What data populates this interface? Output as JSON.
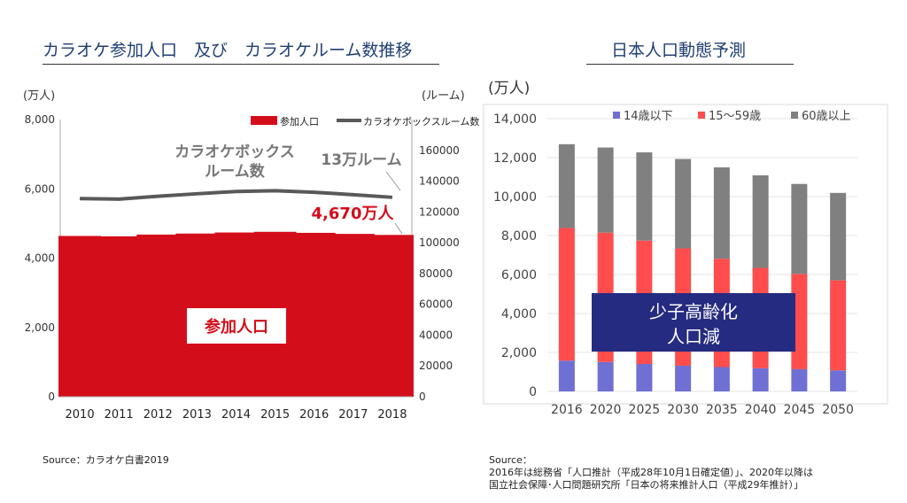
{
  "left_title": "カラオケ参加人口　及び　カラオケルーム数推移",
  "right_title": "日本人口動態予測",
  "left_source": "Source：カラオケ白書2019",
  "right_source": {
    "label": "Source：",
    "line1": "2016年は総務省「人口推計（平成28年10月1日確定値）」、2020年以降は",
    "line2": "国立社会保障･人口問題研究所「日本の将来推計人口（平成29年推計）」"
  },
  "chart_data": [
    {
      "type": "bar",
      "title": "カラオケ参加人口　及び　カラオケルーム数推移",
      "ylabel": "(万人)",
      "y2label": "(ルーム)",
      "categories": [
        "2010",
        "2011",
        "2012",
        "2013",
        "2014",
        "2015",
        "2016",
        "2017",
        "2018"
      ],
      "ylim": [
        0,
        8000
      ],
      "yticks": [
        "0",
        "2,000",
        "4,000",
        "6,000",
        "8,000"
      ],
      "y2lim": [
        0,
        180000
      ],
      "y2ticks": [
        "0",
        "20000",
        "40000",
        "60000",
        "80000",
        "100000",
        "120000",
        "140000",
        "160000"
      ],
      "series": [
        {
          "name": "参加人口",
          "type": "bar",
          "axis": "left",
          "color": "#d40d1a",
          "values": [
            4640,
            4630,
            4680,
            4710,
            4740,
            4760,
            4730,
            4700,
            4670
          ]
        },
        {
          "name": "カラオケボックスルーム数",
          "type": "line",
          "axis": "right",
          "color": "#595959",
          "values": [
            128700,
            128300,
            130200,
            131800,
            133300,
            133800,
            132800,
            131200,
            129500
          ]
        }
      ],
      "annotations": {
        "line_label": [
          "カラオケボックス",
          "ルーム数"
        ],
        "line_value": "13万ルーム",
        "bar_value": "4,670万人",
        "bar_center": "参加人口"
      }
    },
    {
      "type": "bar",
      "stacked": true,
      "title": "日本人口動態予測",
      "ylabel": "(万人)",
      "categories": [
        "2016",
        "2020",
        "2025",
        "2030",
        "2035",
        "2040",
        "2045",
        "2050"
      ],
      "ylim": [
        0,
        14000
      ],
      "yticks": [
        "0",
        "2,000",
        "4,000",
        "6,000",
        "8,000",
        "10,000",
        "12,000",
        "14,000"
      ],
      "series": [
        {
          "name": "14歳以下",
          "color": "#6f6fd4",
          "values": [
            1580,
            1510,
            1410,
            1320,
            1250,
            1190,
            1140,
            1080
          ]
        },
        {
          "name": "15～59歳",
          "color": "#ff4d4d",
          "values": [
            6810,
            6640,
            6330,
            6020,
            5560,
            5150,
            4890,
            4620
          ]
        },
        {
          "name": "60歳以上",
          "color": "#808080",
          "values": [
            4300,
            4370,
            4530,
            4590,
            4690,
            4750,
            4620,
            4490
          ]
        }
      ],
      "annotations": {
        "box": [
          "少子高齢化",
          "人口減"
        ]
      }
    }
  ]
}
